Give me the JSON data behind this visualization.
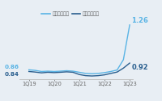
{
  "x_labels": [
    "1Q19",
    "1Q20",
    "1Q21",
    "1Q22",
    "1Q23"
  ],
  "line1_color": "#5ab4e5",
  "line2_color": "#2a5f8f",
  "line1_y": [
    0.86,
    0.855,
    0.845,
    0.848,
    0.845,
    0.848,
    0.852,
    0.848,
    0.838,
    0.828,
    0.825,
    0.828,
    0.835,
    0.845,
    0.858,
    0.95,
    1.26
  ],
  "line2_y": [
    0.845,
    0.84,
    0.833,
    0.838,
    0.835,
    0.838,
    0.842,
    0.838,
    0.818,
    0.808,
    0.805,
    0.808,
    0.815,
    0.828,
    0.84,
    0.875,
    0.92
  ],
  "ylim": [
    0.78,
    1.32
  ],
  "background_color": "#e8eef4",
  "annotation1_text": "1.26",
  "annotation1_color": "#5ab4e5",
  "annotation2_text": "0.92",
  "annotation2_color": "#2a5f8f",
  "left_label1": "0.86",
  "left_label2": "0.84",
  "legend1": "부기실엉대출",
  "legend2": "고정실엉대출"
}
